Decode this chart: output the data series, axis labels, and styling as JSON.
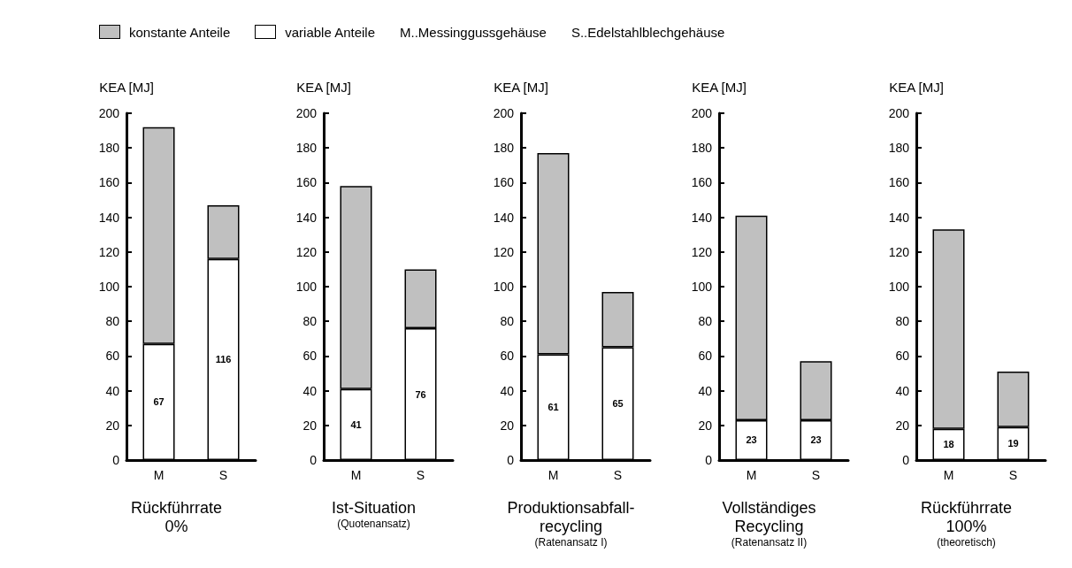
{
  "chart_data": [
    {
      "type": "bar",
      "title": "Rückführrate\n0%",
      "ylabel": "KEA [MJ]",
      "categories": [
        "M",
        "S"
      ],
      "stacked": true,
      "legend": "top",
      "annotations": [
        "M..Messinggussgehäuse",
        "S..Edelstahlblechgehäuse"
      ],
      "ylim": [
        0,
        200
      ],
      "yticks": [
        0,
        20,
        40,
        60,
        80,
        100,
        120,
        140,
        160,
        180,
        200
      ],
      "grid": false,
      "series": [
        {
          "name": "variable Anteile",
          "color": "#ffffff",
          "values": [
            67,
            116
          ],
          "value_labels": [
            "67",
            "116"
          ]
        },
        {
          "name": "konstante Anteile",
          "color": "#c0c0c0",
          "values": [
            125,
            31
          ]
        }
      ]
    },
    {
      "type": "bar",
      "title": "Ist-Situation",
      "subtitle": "(Quotenansatz)",
      "ylabel": "KEA [MJ]",
      "categories": [
        "M",
        "S"
      ],
      "stacked": true,
      "ylim": [
        0,
        200
      ],
      "yticks": [
        0,
        20,
        40,
        60,
        80,
        100,
        120,
        140,
        160,
        180,
        200
      ],
      "grid": false,
      "series": [
        {
          "color": "#ffffff",
          "values": [
            41,
            76
          ],
          "value_labels": [
            "41",
            "76"
          ]
        },
        {
          "color": "#c0c0c0",
          "values": [
            117,
            34
          ]
        }
      ]
    },
    {
      "type": "bar",
      "title": "Produktionsabfall-\nrecycling",
      "subtitle": "(Ratenansatz I)",
      "ylabel": "KEA [MJ]",
      "categories": [
        "M",
        "S"
      ],
      "stacked": true,
      "ylim": [
        0,
        200
      ],
      "yticks": [
        0,
        20,
        40,
        60,
        80,
        100,
        120,
        140,
        160,
        180,
        200
      ],
      "grid": false,
      "series": [
        {
          "color": "#ffffff",
          "values": [
            61,
            65
          ],
          "value_labels": [
            "61",
            "65"
          ]
        },
        {
          "color": "#c0c0c0",
          "values": [
            116,
            32
          ]
        }
      ]
    },
    {
      "type": "bar",
      "title": "Vollständiges\nRecycling",
      "subtitle": "(Ratenansatz II)",
      "ylabel": "KEA [MJ]",
      "categories": [
        "M",
        "S"
      ],
      "stacked": true,
      "ylim": [
        0,
        200
      ],
      "yticks": [
        0,
        20,
        40,
        60,
        80,
        100,
        120,
        140,
        160,
        180,
        200
      ],
      "grid": false,
      "series": [
        {
          "color": "#ffffff",
          "values": [
            23,
            23
          ],
          "value_labels": [
            "23",
            "23"
          ]
        },
        {
          "color": "#c0c0c0",
          "values": [
            118,
            34
          ]
        }
      ]
    },
    {
      "type": "bar",
      "title": "Rückführrate\n100%",
      "subtitle": "(theoretisch)",
      "ylabel": "KEA [MJ]",
      "categories": [
        "M",
        "S"
      ],
      "stacked": true,
      "ylim": [
        0,
        200
      ],
      "yticks": [
        0,
        20,
        40,
        60,
        80,
        100,
        120,
        140,
        160,
        180,
        200
      ],
      "grid": false,
      "series": [
        {
          "color": "#ffffff",
          "values": [
            18,
            19
          ],
          "value_labels": [
            "18",
            "19"
          ]
        },
        {
          "color": "#c0c0c0",
          "values": [
            115,
            32
          ]
        }
      ]
    }
  ]
}
